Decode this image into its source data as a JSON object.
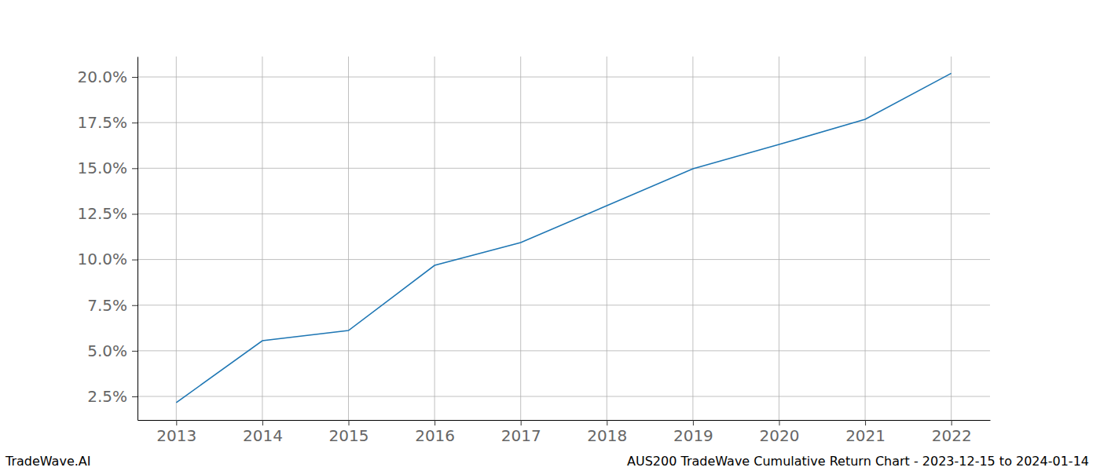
{
  "chart_data": {
    "type": "line",
    "title": "AUS200 TradeWave Cumulative Return Chart - 2023-12-15 to 2024-01-14",
    "annotations": [
      "TradeWave.AI"
    ],
    "x": [
      2013,
      2014,
      2015,
      2016,
      2017,
      2018,
      2019,
      2020,
      2021,
      2022
    ],
    "values": [
      2.16,
      5.55,
      6.11,
      9.68,
      10.93,
      12.95,
      14.97,
      16.3,
      17.68,
      20.2
    ],
    "color": "#1f77b4",
    "xlim": [
      2012.55,
      2022.45
    ],
    "xticks": [
      2013,
      2014,
      2015,
      2016,
      2017,
      2018,
      2019,
      2020,
      2021,
      2022
    ],
    "ylim": [
      1.21,
      21.12
    ],
    "yticks": [
      {
        "value": 2.5,
        "label": "2.5%"
      },
      {
        "value": 5,
        "label": "5.0%"
      },
      {
        "value": 7.5,
        "label": "7.5%"
      },
      {
        "value": 10,
        "label": "10.0%"
      },
      {
        "value": 12.5,
        "label": "12.5%"
      },
      {
        "value": 15,
        "label": "15.0%"
      },
      {
        "value": 17.5,
        "label": "17.5%"
      },
      {
        "value": 20,
        "label": "20.0%"
      }
    ],
    "grid": true
  }
}
